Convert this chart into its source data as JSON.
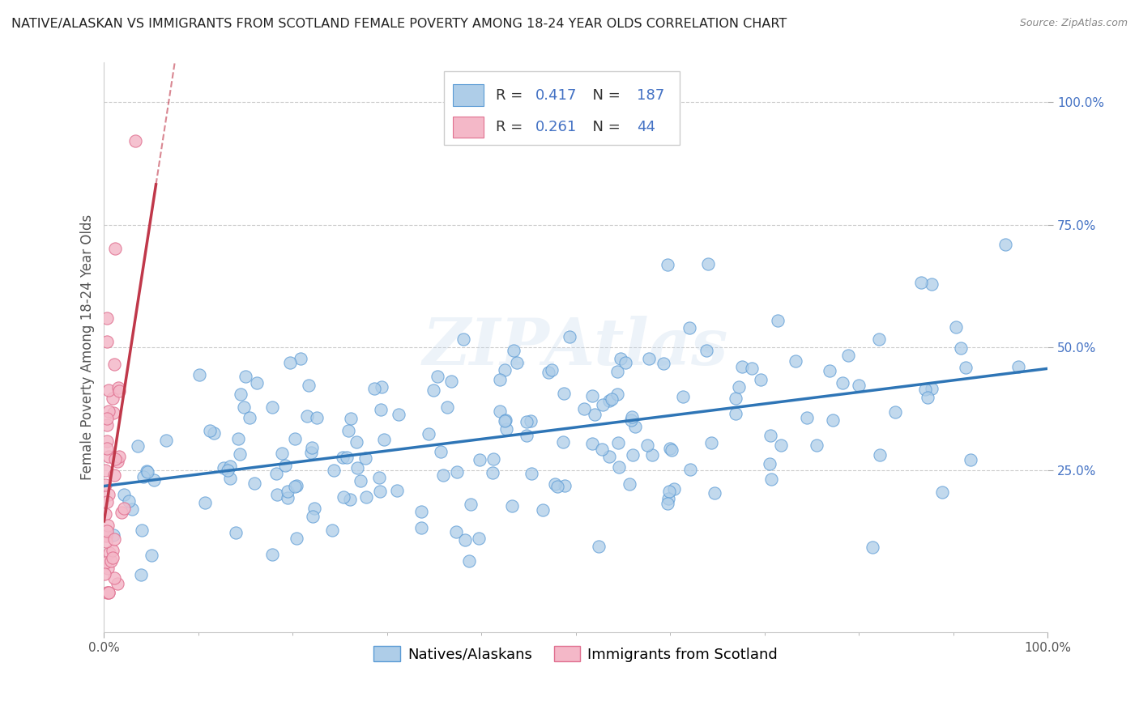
{
  "title": "NATIVE/ALASKAN VS IMMIGRANTS FROM SCOTLAND FEMALE POVERTY AMONG 18-24 YEAR OLDS CORRELATION CHART",
  "source": "Source: ZipAtlas.com",
  "ylabel": "Female Poverty Among 18-24 Year Olds",
  "xlim": [
    0,
    1
  ],
  "ylim": [
    -0.08,
    1.08
  ],
  "blue_color": "#aecde8",
  "blue_edge_color": "#5b9bd5",
  "pink_color": "#f4b8c8",
  "pink_edge_color": "#e07090",
  "blue_line_color": "#2e75b6",
  "pink_line_color": "#c0384a",
  "R_blue": 0.417,
  "N_blue": 187,
  "R_pink": 0.261,
  "N_pink": 44,
  "legend_label_blue": "Natives/Alaskans",
  "legend_label_pink": "Immigrants from Scotland",
  "watermark": "ZIPAtlas",
  "title_fontsize": 11.5,
  "axis_label_fontsize": 12,
  "tick_fontsize": 11,
  "background_color": "#ffffff",
  "grid_color": "#cccccc",
  "value_color": "#4472c4",
  "seed_blue": 42,
  "seed_pink": 123
}
